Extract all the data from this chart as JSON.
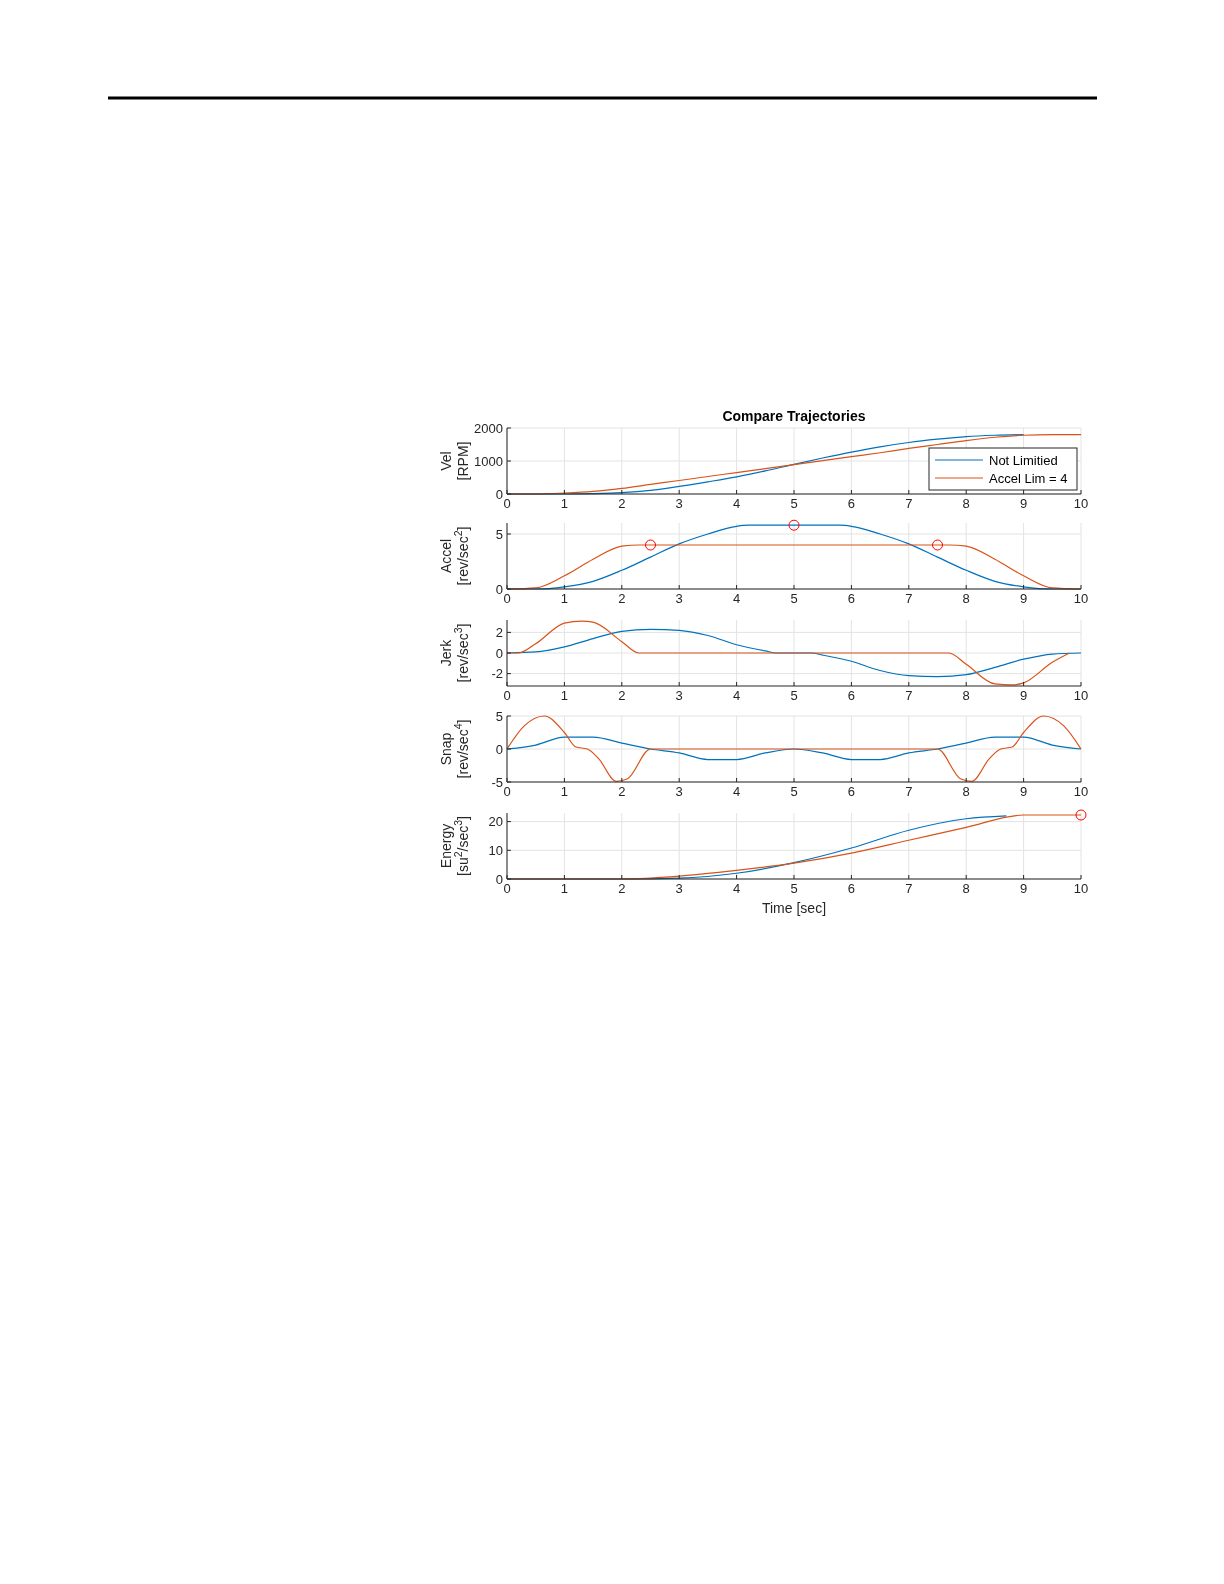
{
  "chart_data": [
    {
      "type": "line",
      "title": "Compare Trajectories",
      "ylabel": "Vel\n[RPM]",
      "xlim": [
        0,
        10
      ],
      "xticks": [
        0,
        1,
        2,
        3,
        4,
        5,
        6,
        7,
        8,
        9,
        10
      ],
      "ylim": [
        0,
        2000
      ],
      "yticks": [
        0,
        1000,
        2000
      ],
      "grid": true,
      "legend": "bottom right",
      "series": [
        {
          "name": "Not Limitied",
          "color": "#0072bd",
          "x": [
            0,
            1,
            1.5,
            2,
            2.5,
            3,
            3.5,
            4,
            4.5,
            5,
            5.5,
            6,
            6.5,
            7,
            7.5,
            8,
            8.5,
            9
          ],
          "values": [
            0,
            0,
            10,
            40,
            110,
            230,
            370,
            520,
            700,
            900,
            1090,
            1270,
            1430,
            1560,
            1660,
            1740,
            1780,
            1800
          ]
        },
        {
          "name": "Accel Lim = 4",
          "color": "#d95319",
          "x": [
            0,
            0.5,
            1,
            1.5,
            2,
            2.5,
            3,
            3.5,
            4,
            4.5,
            5,
            5.5,
            6,
            6.5,
            7,
            7.5,
            8,
            8.5,
            9,
            9.5,
            10
          ],
          "values": [
            0,
            0,
            30,
            80,
            170,
            290,
            410,
            530,
            650,
            770,
            890,
            1010,
            1130,
            1250,
            1380,
            1500,
            1620,
            1720,
            1780,
            1800,
            1800
          ]
        }
      ]
    },
    {
      "type": "line",
      "ylabel": "Accel\n[rev/sec$^{2}$]",
      "xlim": [
        0,
        10
      ],
      "xticks": [
        0,
        1,
        2,
        3,
        4,
        5,
        6,
        7,
        8,
        9,
        10
      ],
      "ylim": [
        0,
        6
      ],
      "yticks": [
        0,
        5
      ],
      "grid": true,
      "series": [
        {
          "color": "#0072bd",
          "x": [
            0,
            0.5,
            1,
            1.5,
            2,
            2.5,
            3,
            3.5,
            4,
            4.2,
            5,
            5.8,
            6,
            6.5,
            7,
            7.5,
            8,
            8.5,
            9,
            9.5,
            10
          ],
          "values": [
            0,
            0,
            0.2,
            0.7,
            1.7,
            2.9,
            4.1,
            5.0,
            5.7,
            5.8,
            5.8,
            5.8,
            5.7,
            5.0,
            4.1,
            2.9,
            1.7,
            0.7,
            0.2,
            0,
            0
          ]
        },
        {
          "color": "#d95319",
          "x": [
            0,
            0.5,
            1,
            1.5,
            2,
            2.3,
            7.7,
            8,
            8.5,
            9,
            9.5,
            10
          ],
          "values": [
            0,
            0.1,
            1.2,
            2.7,
            3.9,
            4,
            4,
            3.9,
            2.7,
            1.2,
            0.1,
            0
          ]
        },
        {
          "type": "scatter",
          "marker": "circle",
          "color": "#ff0000",
          "x": [
            2.5,
            5,
            7.5
          ],
          "values": [
            4,
            5.8,
            4
          ]
        }
      ]
    },
    {
      "type": "line",
      "ylabel": "Jerk\n[rev/sec$^{3}$]",
      "xlim": [
        0,
        10
      ],
      "xticks": [
        0,
        1,
        2,
        3,
        4,
        5,
        6,
        7,
        8,
        9,
        10
      ],
      "ylim": [
        -3.2,
        3.2
      ],
      "yticks": [
        -2,
        0,
        2
      ],
      "grid": true,
      "series": [
        {
          "color": "#0072bd",
          "x": [
            0,
            0.5,
            1,
            1.5,
            2,
            2.5,
            3,
            3.5,
            4,
            4.5,
            4.7,
            5.3,
            5.5,
            6,
            6.5,
            7,
            7.5,
            8,
            8.5,
            9,
            9.5,
            10
          ],
          "values": [
            0,
            0.1,
            0.6,
            1.4,
            2.1,
            2.3,
            2.2,
            1.7,
            0.8,
            0.2,
            0,
            0,
            -0.2,
            -0.8,
            -1.7,
            -2.2,
            -2.3,
            -2.1,
            -1.4,
            -0.6,
            -0.1,
            0
          ]
        },
        {
          "color": "#d95319",
          "x": [
            0,
            0.2,
            0.5,
            1,
            1.3,
            1.5,
            2,
            2.3,
            7.7,
            8,
            8.5,
            8.8,
            9,
            9.5,
            9.8
          ],
          "values": [
            0,
            0,
            0.9,
            2.9,
            3.1,
            3.0,
            1.1,
            0,
            0,
            -1.1,
            -3.0,
            -3.1,
            -2.9,
            -0.9,
            0
          ]
        }
      ]
    },
    {
      "type": "line",
      "ylabel": "Snap\n[rev/sec$^{4}$]",
      "xlim": [
        0,
        10
      ],
      "xticks": [
        0,
        1,
        2,
        3,
        4,
        5,
        6,
        7,
        8,
        9,
        10
      ],
      "ylim": [
        -5,
        5
      ],
      "yticks": [
        -5,
        0,
        5
      ],
      "grid": true,
      "series": [
        {
          "color": "#0072bd",
          "x": [
            0,
            0.5,
            1,
            1.5,
            2,
            2.5,
            3,
            3.5,
            4,
            4.5,
            5,
            5.5,
            6,
            6.5,
            7,
            7.5,
            8,
            8.5,
            9,
            9.5,
            10
          ],
          "values": [
            0,
            0.6,
            1.8,
            1.8,
            0.9,
            0,
            -0.6,
            -1.6,
            -1.6,
            -0.6,
            0,
            -0.6,
            -1.6,
            -1.6,
            -0.6,
            0,
            0.9,
            1.8,
            1.8,
            0.6,
            0
          ]
        },
        {
          "color": "#d95319",
          "x": [
            0,
            0.3,
            0.65,
            1,
            1.2,
            1.4,
            1.6,
            1.9,
            2.1,
            2.5,
            7.5,
            7.9,
            8.1,
            8.4,
            8.6,
            8.8,
            9,
            9.35,
            9.7,
            10
          ],
          "values": [
            0,
            3.5,
            5,
            2.5,
            0.3,
            0,
            -1.5,
            -4.9,
            -4.5,
            0,
            0,
            -4.5,
            -4.9,
            -1.5,
            0,
            0.3,
            2.5,
            5,
            3.5,
            0
          ]
        }
      ]
    },
    {
      "type": "line",
      "xlabel": "Time [sec]",
      "ylabel": "Energy\n[su$^{2}$/sec$^{3}$]",
      "xlim": [
        0,
        10
      ],
      "xticks": [
        0,
        1,
        2,
        3,
        4,
        5,
        6,
        7,
        8,
        9,
        10
      ],
      "ylim": [
        0,
        23
      ],
      "yticks": [
        0,
        10,
        20
      ],
      "grid": true,
      "series": [
        {
          "color": "#0072bd",
          "x": [
            0,
            2,
            3,
            4,
            5,
            6,
            7,
            8,
            8.7
          ],
          "values": [
            0,
            0,
            0.3,
            2,
            5.7,
            10.8,
            17,
            21,
            22
          ]
        },
        {
          "color": "#d95319",
          "x": [
            0,
            2,
            3,
            4,
            5,
            6,
            7,
            8,
            9,
            10
          ],
          "values": [
            0,
            0,
            1,
            3,
            5.5,
            9,
            13.5,
            18,
            22.3,
            22.3
          ]
        },
        {
          "type": "scatter",
          "marker": "circle",
          "color": "#ff0000",
          "x": [
            10
          ],
          "values": [
            22.3
          ]
        }
      ]
    }
  ]
}
